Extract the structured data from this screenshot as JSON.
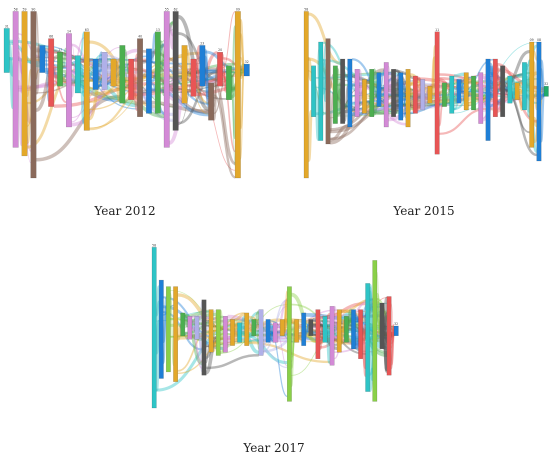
{
  "figure": {
    "panels": [
      {
        "id": "p2012",
        "caption": "Year 2012",
        "seed": 7,
        "columns": [
          {
            "label": "31",
            "color": "#2ec4c6",
            "top": 0.12,
            "height": 0.26
          },
          {
            "label": "58",
            "color": "#d38ad6",
            "top": 0.02,
            "height": 0.8
          },
          {
            "label": "59",
            "color": "#e3a82a",
            "top": 0.02,
            "height": 0.85
          },
          {
            "label": "90",
            "color": "#8a6a5b",
            "top": 0.02,
            "height": 0.98
          },
          {
            "label": "",
            "color": "#1f7fd6",
            "top": 0.22,
            "height": 0.16
          },
          {
            "label": "66",
            "color": "#e85555",
            "top": 0.18,
            "height": 0.4
          },
          {
            "label": "17",
            "color": "#4caf50",
            "top": 0.26,
            "height": 0.2
          },
          {
            "label": "14",
            "color": "#d38ad6",
            "top": 0.15,
            "height": 0.55
          },
          {
            "label": "",
            "color": "#2ec4c6",
            "top": 0.28,
            "height": 0.22
          },
          {
            "label": "63",
            "color": "#e3a82a",
            "top": 0.14,
            "height": 0.58
          },
          {
            "label": "",
            "color": "#1f7fd6",
            "top": 0.3,
            "height": 0.18
          },
          {
            "label": "",
            "color": "#b0b0e8",
            "top": 0.26,
            "height": 0.22
          },
          {
            "label": "",
            "color": "#e3a82a",
            "top": 0.3,
            "height": 0.16
          },
          {
            "label": "",
            "color": "#4caf50",
            "top": 0.22,
            "height": 0.34
          },
          {
            "label": "",
            "color": "#e85555",
            "top": 0.3,
            "height": 0.24
          },
          {
            "label": "40",
            "color": "#8a6a5b",
            "top": 0.18,
            "height": 0.46
          },
          {
            "label": "",
            "color": "#1f7fd6",
            "top": 0.24,
            "height": 0.38
          },
          {
            "label": "13",
            "color": "#4caf50",
            "top": 0.14,
            "height": 0.48
          },
          {
            "label": "55",
            "color": "#d38ad6",
            "top": 0.02,
            "height": 0.8
          },
          {
            "label": "62",
            "color": "#555555",
            "top": 0.02,
            "height": 0.7
          },
          {
            "label": "",
            "color": "#e3a82a",
            "top": 0.22,
            "height": 0.34
          },
          {
            "label": "",
            "color": "#e85555",
            "top": 0.3,
            "height": 0.22
          },
          {
            "label": "23",
            "color": "#1f7fd6",
            "top": 0.22,
            "height": 0.24
          },
          {
            "label": "",
            "color": "#8a6a5b",
            "top": 0.44,
            "height": 0.22
          },
          {
            "label": "20",
            "color": "#e85555",
            "top": 0.26,
            "height": 0.2
          },
          {
            "label": "",
            "color": "#4caf50",
            "top": 0.34,
            "height": 0.2
          },
          {
            "label": "09",
            "color": "#e3a82a",
            "top": 0.02,
            "height": 0.98
          },
          {
            "label": "32",
            "color": "#1f7fd6",
            "top": 0.33,
            "height": 0.07
          }
        ]
      },
      {
        "id": "p2015",
        "caption": "Year 2015",
        "seed": 19,
        "columns": [
          {
            "label": "58",
            "color": "#e3a82a",
            "top": 0.02,
            "height": 0.98
          },
          {
            "label": "",
            "color": "#2ec4c6",
            "top": 0.34,
            "height": 0.3
          },
          {
            "label": "",
            "color": "#2ec4c6",
            "top": 0.2,
            "height": 0.58
          },
          {
            "label": "",
            "color": "#8a6a5b",
            "top": 0.18,
            "height": 0.62
          },
          {
            "label": "",
            "color": "#4caf50",
            "top": 0.34,
            "height": 0.34
          },
          {
            "label": "",
            "color": "#555555",
            "top": 0.3,
            "height": 0.38
          },
          {
            "label": "",
            "color": "#1f7fd6",
            "top": 0.3,
            "height": 0.4
          },
          {
            "label": "",
            "color": "#d38ad6",
            "top": 0.36,
            "height": 0.28
          },
          {
            "label": "",
            "color": "#e3a82a",
            "top": 0.42,
            "height": 0.2
          },
          {
            "label": "",
            "color": "#4caf50",
            "top": 0.36,
            "height": 0.28
          },
          {
            "label": "",
            "color": "#1f7fd6",
            "top": 0.38,
            "height": 0.2
          },
          {
            "label": "",
            "color": "#d38ad6",
            "top": 0.32,
            "height": 0.38
          },
          {
            "label": "",
            "color": "#555555",
            "top": 0.36,
            "height": 0.28
          },
          {
            "label": "",
            "color": "#1f7fd6",
            "top": 0.38,
            "height": 0.28
          },
          {
            "label": "",
            "color": "#e3a82a",
            "top": 0.36,
            "height": 0.34
          },
          {
            "label": "",
            "color": "#e85555",
            "top": 0.4,
            "height": 0.22
          },
          {
            "label": "",
            "color": "#b0b0e8",
            "top": 0.42,
            "height": 0.18
          },
          {
            "label": "",
            "color": "#e3a82a",
            "top": 0.46,
            "height": 0.1
          },
          {
            "label": "11",
            "color": "#e85555",
            "top": 0.14,
            "height": 0.72
          },
          {
            "label": "",
            "color": "#4caf50",
            "top": 0.44,
            "height": 0.14
          },
          {
            "label": "",
            "color": "#2ec4c6",
            "top": 0.4,
            "height": 0.22
          },
          {
            "label": "",
            "color": "#1f7fd6",
            "top": 0.42,
            "height": 0.14
          },
          {
            "label": "",
            "color": "#e3a82a",
            "top": 0.38,
            "height": 0.22
          },
          {
            "label": "",
            "color": "#4caf50",
            "top": 0.4,
            "height": 0.2
          },
          {
            "label": "",
            "color": "#d38ad6",
            "top": 0.38,
            "height": 0.3
          },
          {
            "label": "",
            "color": "#1f7fd6",
            "top": 0.3,
            "height": 0.48
          },
          {
            "label": "",
            "color": "#e85555",
            "top": 0.3,
            "height": 0.34
          },
          {
            "label": "",
            "color": "#555555",
            "top": 0.34,
            "height": 0.3
          },
          {
            "label": "",
            "color": "#2ec4c6",
            "top": 0.4,
            "height": 0.16
          },
          {
            "label": "",
            "color": "#e3a82a",
            "top": 0.44,
            "height": 0.1
          },
          {
            "label": "",
            "color": "#2ec4c6",
            "top": 0.32,
            "height": 0.28
          },
          {
            "label": "09",
            "color": "#e3a82a",
            "top": 0.2,
            "height": 0.62
          },
          {
            "label": "08",
            "color": "#1f7fd6",
            "top": 0.2,
            "height": 0.7
          },
          {
            "label": "32",
            "color": "#1faa6a",
            "top": 0.46,
            "height": 0.06
          }
        ]
      },
      {
        "id": "p2017",
        "caption": "Year 2017",
        "seed": 31,
        "columns": [
          {
            "label": "58",
            "color": "#2ec4c6",
            "top": 0.02,
            "height": 0.98
          },
          {
            "label": "",
            "color": "#1f7fd6",
            "top": 0.22,
            "height": 0.6
          },
          {
            "label": "",
            "color": "#8ad048",
            "top": 0.26,
            "height": 0.52
          },
          {
            "label": "",
            "color": "#e3a82a",
            "top": 0.26,
            "height": 0.58
          },
          {
            "label": "",
            "color": "#4caf50",
            "top": 0.42,
            "height": 0.14
          },
          {
            "label": "",
            "color": "#d38ad6",
            "top": 0.44,
            "height": 0.14
          },
          {
            "label": "",
            "color": "#b0b0e8",
            "top": 0.44,
            "height": 0.14
          },
          {
            "label": "",
            "color": "#555555",
            "top": 0.34,
            "height": 0.46
          },
          {
            "label": "",
            "color": "#e3a82a",
            "top": 0.4,
            "height": 0.26
          },
          {
            "label": "",
            "color": "#8ad048",
            "top": 0.4,
            "height": 0.28
          },
          {
            "label": "",
            "color": "#d38ad6",
            "top": 0.44,
            "height": 0.22
          },
          {
            "label": "",
            "color": "#e3a82a",
            "top": 0.46,
            "height": 0.16
          },
          {
            "label": "",
            "color": "#2ec4c6",
            "top": 0.48,
            "height": 0.12
          },
          {
            "label": "",
            "color": "#e3a82a",
            "top": 0.42,
            "height": 0.2
          },
          {
            "label": "",
            "color": "#4caf50",
            "top": 0.46,
            "height": 0.1
          },
          {
            "label": "",
            "color": "#b0b0e8",
            "top": 0.4,
            "height": 0.28
          },
          {
            "label": "",
            "color": "#1f7fd6",
            "top": 0.46,
            "height": 0.14
          },
          {
            "label": "",
            "color": "#d38ad6",
            "top": 0.48,
            "height": 0.12
          },
          {
            "label": "",
            "color": "#e3a82a",
            "top": 0.46,
            "height": 0.1
          },
          {
            "label": "",
            "color": "#8ad048",
            "top": 0.26,
            "height": 0.7
          },
          {
            "label": "",
            "color": "#e3a82a",
            "top": 0.46,
            "height": 0.14
          },
          {
            "label": "",
            "color": "#1f7fd6",
            "top": 0.42,
            "height": 0.2
          },
          {
            "label": "",
            "color": "#555555",
            "top": 0.46,
            "height": 0.1
          },
          {
            "label": "",
            "color": "#e85555",
            "top": 0.4,
            "height": 0.3
          },
          {
            "label": "",
            "color": "#2ec4c6",
            "top": 0.44,
            "height": 0.16
          },
          {
            "label": "",
            "color": "#d38ad6",
            "top": 0.38,
            "height": 0.36
          },
          {
            "label": "",
            "color": "#e3a82a",
            "top": 0.4,
            "height": 0.26
          },
          {
            "label": "",
            "color": "#4caf50",
            "top": 0.44,
            "height": 0.16
          },
          {
            "label": "",
            "color": "#1f7fd6",
            "top": 0.4,
            "height": 0.24
          },
          {
            "label": "",
            "color": "#e85555",
            "top": 0.4,
            "height": 0.3
          },
          {
            "label": "",
            "color": "#2ec4c6",
            "top": 0.24,
            "height": 0.66
          },
          {
            "label": "",
            "color": "#8ad048",
            "top": 0.1,
            "height": 0.86
          },
          {
            "label": "",
            "color": "#555555",
            "top": 0.36,
            "height": 0.28
          },
          {
            "label": "",
            "color": "#e85555",
            "top": 0.32,
            "height": 0.48
          },
          {
            "label": "32",
            "color": "#1f7fd6",
            "top": 0.5,
            "height": 0.06
          }
        ]
      }
    ]
  }
}
